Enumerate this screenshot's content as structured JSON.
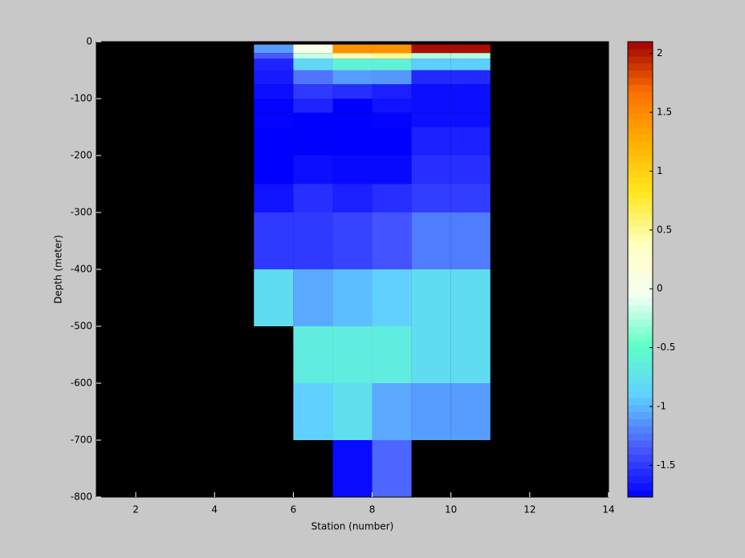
{
  "chart_data": {
    "type": "heatmap",
    "xlabel": "Station (number)",
    "ylabel": "Depth (meter)",
    "x_edges": [
      5,
      6,
      7,
      8,
      9,
      10,
      11
    ],
    "y_edges": [
      -5,
      -20,
      -30,
      -50,
      -75,
      -100,
      -125,
      -150,
      -200,
      -250,
      -300,
      -400,
      -500,
      -600,
      -700,
      -800
    ],
    "z": [
      [
        -1.1,
        0.1,
        1.45,
        1.45,
        2.05,
        2.05
      ],
      [
        -1.35,
        -0.2,
        0.4,
        0.5,
        -0.25,
        -0.25
      ],
      [
        -1.6,
        -0.85,
        -0.6,
        -0.6,
        -0.92,
        -0.92
      ],
      [
        -1.65,
        -1.25,
        -1.1,
        -1.12,
        -1.58,
        -1.58
      ],
      [
        -1.7,
        -1.5,
        -1.55,
        -1.62,
        -1.7,
        -1.7
      ],
      [
        -1.75,
        -1.6,
        -1.77,
        -1.68,
        -1.7,
        -1.7
      ],
      [
        -1.75,
        -1.77,
        -1.77,
        -1.75,
        -1.7,
        -1.7
      ],
      [
        -1.77,
        -1.77,
        -1.77,
        -1.77,
        -1.62,
        -1.62
      ],
      [
        -1.77,
        -1.7,
        -1.73,
        -1.73,
        -1.55,
        -1.55
      ],
      [
        -1.68,
        -1.55,
        -1.62,
        -1.55,
        -1.48,
        -1.48
      ],
      [
        -1.5,
        -1.5,
        -1.45,
        -1.38,
        -1.22,
        -1.22
      ],
      [
        -0.8,
        -1.05,
        -0.98,
        -0.9,
        -0.8,
        -0.8
      ],
      [
        null,
        -0.65,
        -0.65,
        -0.65,
        -0.8,
        -0.8
      ],
      [
        null,
        -0.9,
        -0.78,
        -1.05,
        -1.1,
        -1.1
      ],
      [
        null,
        null,
        -1.72,
        -1.3,
        null,
        null
      ]
    ],
    "xlim": [
      1,
      14
    ],
    "xticks": [
      2,
      4,
      6,
      8,
      10,
      12,
      14
    ],
    "ylim": [
      -800,
      0
    ],
    "yticks": [
      -800,
      -700,
      -600,
      -500,
      -400,
      -300,
      -200,
      -100,
      0
    ],
    "clim": [
      -1.77,
      2.1
    ],
    "cticks": [
      -1.5,
      -1,
      -0.5,
      0,
      0.5,
      1,
      1.5,
      2
    ],
    "colormap": [
      "#0000ff",
      "#4a5cff",
      "#60d0ff",
      "#60ffc8",
      "#f4fff4",
      "#ffffc0",
      "#ffe820",
      "#ffb000",
      "#ff7000",
      "#a00000"
    ],
    "background": "#000000"
  }
}
